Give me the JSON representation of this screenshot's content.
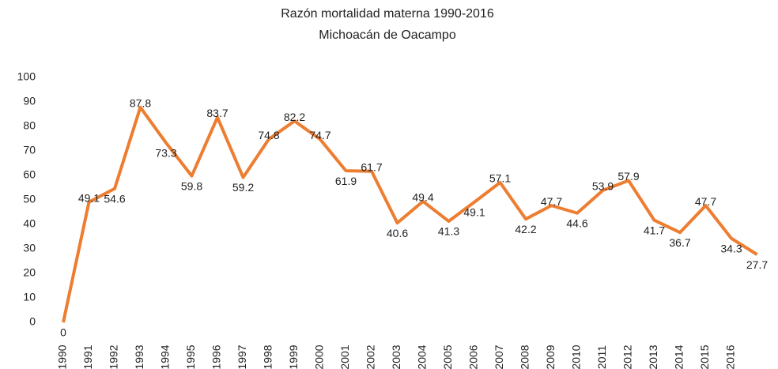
{
  "chart_data": {
    "type": "line",
    "title": "Razón mortalidad materna 1990-2016",
    "subtitle": "Michoacán de Oacampo",
    "categories": [
      "1990",
      "1991",
      "1992",
      "1993",
      "1994",
      "1995",
      "1996",
      "1997",
      "1998",
      "1999",
      "2000",
      "2001",
      "2002",
      "2003",
      "2004",
      "2005",
      "2006",
      "2007",
      "2008",
      "2009",
      "2010",
      "2011",
      "2012",
      "2013",
      "2014",
      "2015",
      "2016",
      null
    ],
    "series": [
      {
        "name": "Razón mortalidad materna",
        "color": "#ed7d31",
        "values": [
          0,
          49.1,
          54.6,
          87.8,
          73.3,
          59.8,
          83.7,
          59.2,
          74.8,
          82.2,
          74.7,
          61.9,
          61.7,
          40.6,
          49.4,
          41.3,
          49.1,
          57.1,
          42.2,
          47.7,
          44.6,
          53.9,
          57.9,
          41.7,
          36.7,
          47.7,
          34.3,
          27.7
        ]
      }
    ],
    "ylim": [
      0,
      100
    ],
    "yticks": [
      0,
      10,
      20,
      30,
      40,
      50,
      60,
      70,
      80,
      90,
      100
    ],
    "grid": false,
    "legend": false
  }
}
